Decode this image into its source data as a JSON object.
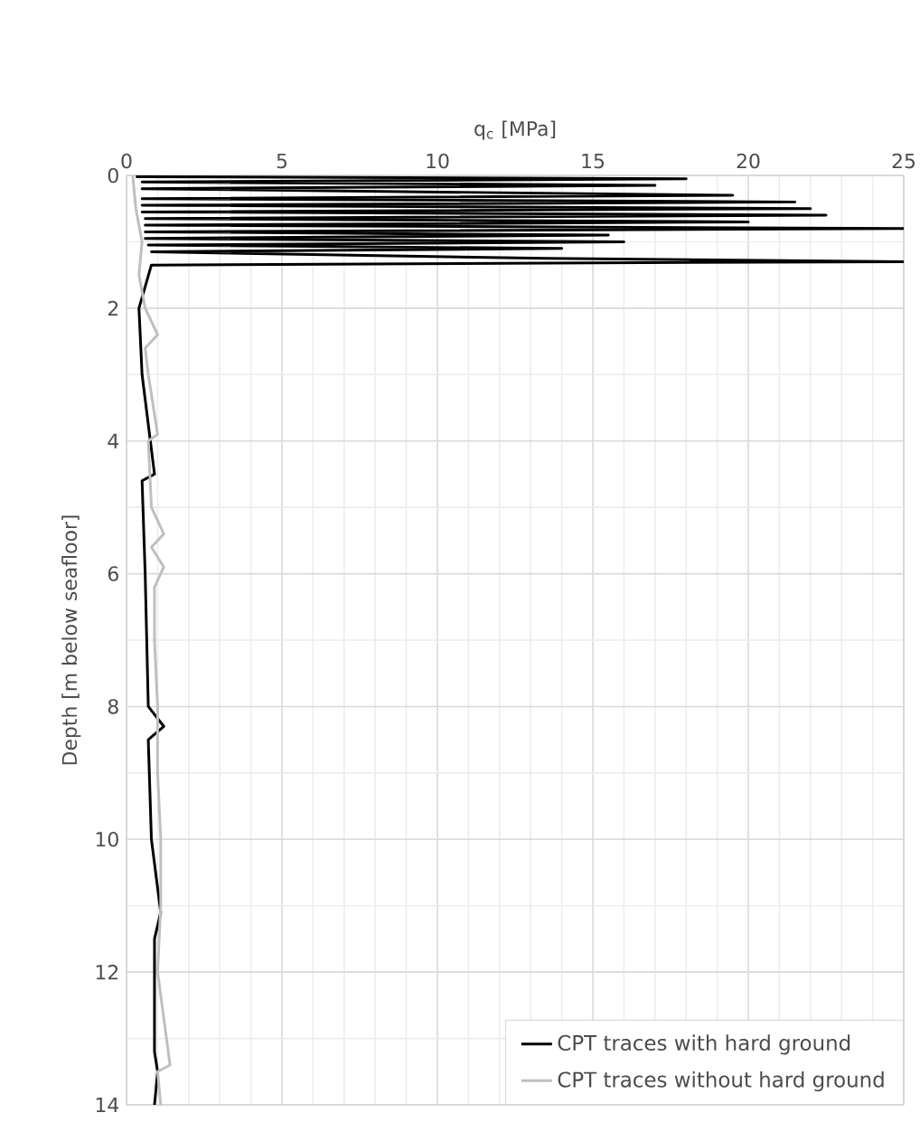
{
  "chart_data": {
    "type": "line",
    "xlabel": "q$_{c}$ [MPa]",
    "ylabel": "Depth [m below seafloor]",
    "xlim": [
      0,
      25
    ],
    "xticks": [
      0,
      5,
      10,
      15,
      20,
      25
    ],
    "ylim": [
      14,
      0
    ],
    "yticks": [
      0,
      2,
      4,
      6,
      8,
      10,
      12,
      14
    ],
    "grid": true,
    "legend": "bottom right",
    "series": [
      {
        "name": "CPT traces with hard ground",
        "color": "#000000",
        "x": [
          0.3,
          18,
          0.5,
          17,
          0.5,
          19.5,
          0.5,
          21.5,
          0.5,
          22,
          0.5,
          22.5,
          0.6,
          20,
          0.6,
          25,
          0.6,
          15.5,
          0.6,
          16,
          0.7,
          14,
          0.8,
          13.5,
          25,
          13.5,
          0.8,
          0.4,
          0.5,
          0.9,
          0.5,
          0.6,
          0.7,
          1.2,
          0.7,
          0.8,
          1.1,
          0.9,
          0.9,
          1.0,
          0.9
        ],
        "values": [
          0.02,
          0.05,
          0.1,
          0.15,
          0.2,
          0.3,
          0.35,
          0.4,
          0.45,
          0.5,
          0.55,
          0.6,
          0.65,
          0.7,
          0.75,
          0.8,
          0.85,
          0.9,
          0.95,
          1.0,
          1.05,
          1.1,
          1.15,
          1.25,
          1.3,
          1.32,
          1.35,
          2,
          3,
          4.5,
          4.6,
          6,
          8,
          8.3,
          8.5,
          10,
          11.1,
          11.5,
          13.2,
          13.5,
          14
        ]
      },
      {
        "name": "CPT traces without hard ground",
        "color": "#bfbfbf",
        "x": [
          0.2,
          0.3,
          0.5,
          0.4,
          0.6,
          1.0,
          0.6,
          0.7,
          1.0,
          0.7,
          0.8,
          1.2,
          0.8,
          1.2,
          0.9,
          0.9,
          1.0,
          1.0,
          1.1,
          1.1,
          1.0,
          1.4,
          1.0,
          1.1
        ],
        "values": [
          0,
          0.5,
          1,
          1.5,
          2,
          2.4,
          2.6,
          3,
          3.9,
          4,
          5,
          5.4,
          5.6,
          5.9,
          6.2,
          7,
          8,
          9,
          10,
          11,
          12,
          13.4,
          13.5,
          14
        ]
      }
    ]
  }
}
